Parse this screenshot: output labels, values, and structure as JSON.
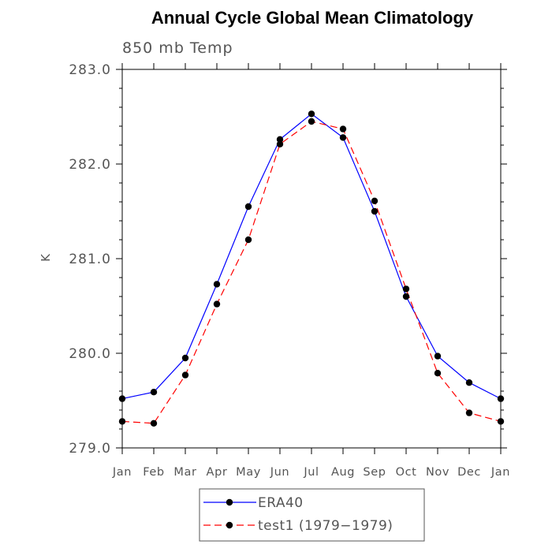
{
  "chart_data": {
    "type": "line",
    "title": "Annual Cycle Global Mean Climatology",
    "subtitle": "850 mb Temp",
    "xlabel": "",
    "ylabel": "K",
    "categories": [
      "Jan",
      "Feb",
      "Mar",
      "Apr",
      "May",
      "Jun",
      "Jul",
      "Aug",
      "Sep",
      "Oct",
      "Nov",
      "Dec",
      "Jan"
    ],
    "ylim": [
      279.0,
      283.0
    ],
    "yticks": [
      279.0,
      280.0,
      281.0,
      282.0,
      283.0
    ],
    "ytick_labels": [
      "279.0",
      "280.0",
      "281.0",
      "282.0",
      "283.0"
    ],
    "grid": false,
    "legend_position": "bottom-center",
    "series": [
      {
        "name": "ERA40",
        "color": "#0000ff",
        "dash": "solid",
        "marker": "circle",
        "values": [
          279.52,
          279.59,
          279.95,
          280.73,
          281.55,
          282.26,
          282.53,
          282.28,
          281.5,
          280.6,
          279.97,
          279.69,
          279.52
        ]
      },
      {
        "name": "test1 (1979−1979)",
        "color": "#ff0000",
        "dash": "dashed",
        "marker": "circle",
        "values": [
          279.28,
          279.26,
          279.77,
          280.52,
          281.2,
          282.21,
          282.45,
          282.37,
          281.61,
          280.68,
          279.79,
          279.37,
          279.28
        ]
      }
    ]
  }
}
